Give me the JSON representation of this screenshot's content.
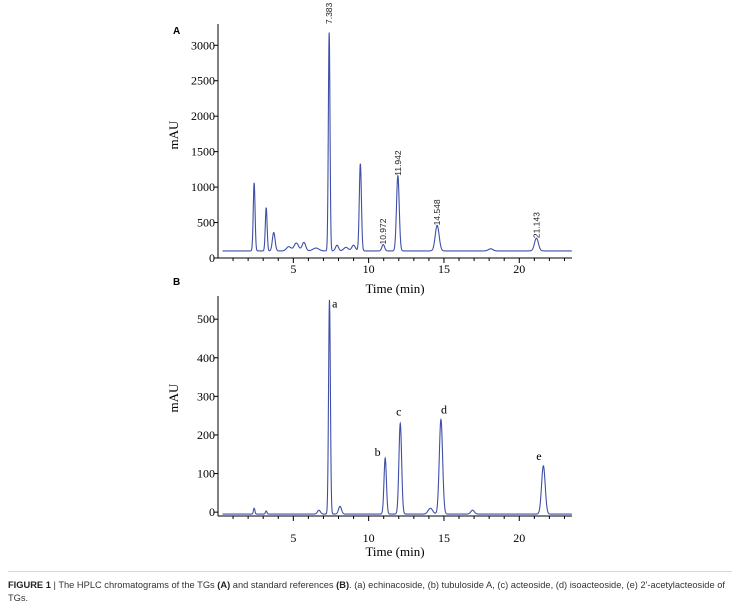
{
  "panels": [
    {
      "label": "A",
      "ylabel": "mAU",
      "xlabel": "Time (min)",
      "ylim": [
        0,
        3300
      ],
      "xlim": [
        0,
        23.5
      ],
      "yticks": [
        0,
        500,
        1000,
        1500,
        2000,
        2500,
        3000
      ],
      "xticks": [
        5,
        10,
        15,
        20
      ],
      "baseline": 100,
      "peaks": [
        {
          "t": 2.4,
          "h": 960,
          "w": 0.06
        },
        {
          "t": 3.2,
          "h": 610,
          "w": 0.06
        },
        {
          "t": 3.7,
          "h": 260,
          "w": 0.09
        },
        {
          "t": 4.7,
          "h": 60,
          "w": 0.15
        },
        {
          "t": 5.2,
          "h": 110,
          "w": 0.15
        },
        {
          "t": 5.7,
          "h": 120,
          "w": 0.12
        },
        {
          "t": 6.5,
          "h": 40,
          "w": 0.2
        },
        {
          "t": 7.38,
          "h": 3080,
          "w": 0.055
        },
        {
          "t": 7.9,
          "h": 80,
          "w": 0.1
        },
        {
          "t": 8.5,
          "h": 50,
          "w": 0.15
        },
        {
          "t": 9.0,
          "h": 80,
          "w": 0.12
        },
        {
          "t": 9.45,
          "h": 1230,
          "w": 0.07
        },
        {
          "t": 10.97,
          "h": 90,
          "w": 0.09
        },
        {
          "t": 11.94,
          "h": 1060,
          "w": 0.09
        },
        {
          "t": 14.55,
          "h": 360,
          "w": 0.13
        },
        {
          "t": 18.1,
          "h": 30,
          "w": 0.15
        },
        {
          "t": 21.14,
          "h": 180,
          "w": 0.13
        }
      ],
      "peak_labels": [
        {
          "text": "7.383",
          "t": 7.38,
          "y": 3300
        },
        {
          "text": "10.972",
          "t": 10.97,
          "y": 190
        },
        {
          "text": "11.942",
          "t": 11.94,
          "y": 1160
        },
        {
          "text": "14.548",
          "t": 14.55,
          "y": 460
        },
        {
          "text": "21.143",
          "t": 21.14,
          "y": 280
        }
      ]
    },
    {
      "label": "B",
      "ylabel": "mAU",
      "xlabel": "Time (min)",
      "ylim": [
        -10,
        560
      ],
      "xlim": [
        0,
        23.5
      ],
      "yticks": [
        0,
        100,
        200,
        300,
        400,
        500
      ],
      "xticks": [
        5,
        10,
        15,
        20
      ],
      "baseline": -5,
      "peaks": [
        {
          "t": 2.4,
          "h": 15,
          "w": 0.05
        },
        {
          "t": 3.2,
          "h": 8,
          "w": 0.05
        },
        {
          "t": 6.7,
          "h": 10,
          "w": 0.1
        },
        {
          "t": 7.4,
          "h": 555,
          "w": 0.06
        },
        {
          "t": 8.1,
          "h": 20,
          "w": 0.1
        },
        {
          "t": 11.1,
          "h": 145,
          "w": 0.08
        },
        {
          "t": 12.1,
          "h": 235,
          "w": 0.09
        },
        {
          "t": 14.1,
          "h": 15,
          "w": 0.15
        },
        {
          "t": 14.8,
          "h": 245,
          "w": 0.11
        },
        {
          "t": 16.9,
          "h": 10,
          "w": 0.12
        },
        {
          "t": 21.6,
          "h": 125,
          "w": 0.12
        }
      ],
      "peak_labels": [
        {
          "text": "a",
          "t": 7.75,
          "y": 530
        },
        {
          "text": "b",
          "t": 10.6,
          "y": 145
        },
        {
          "text": "c",
          "t": 12.0,
          "y": 250
        },
        {
          "text": "d",
          "t": 15.0,
          "y": 255
        },
        {
          "text": "e",
          "t": 21.3,
          "y": 135
        }
      ]
    }
  ],
  "chart_data": [
    {
      "type": "line",
      "title": "A",
      "xlabel": "Time (min)",
      "ylabel": "mAU",
      "xlim": [
        0,
        23.5
      ],
      "ylim": [
        0,
        3300
      ],
      "peaks_retention_time_min": [
        7.383,
        10.972,
        11.942,
        14.548,
        21.143
      ],
      "peaks_height_mAU": [
        3180,
        190,
        1160,
        460,
        280
      ]
    },
    {
      "type": "line",
      "title": "B",
      "xlabel": "Time (min)",
      "ylabel": "mAU",
      "xlim": [
        0,
        23.5
      ],
      "ylim": [
        -10,
        560
      ],
      "peak_labels": [
        "a",
        "b",
        "c",
        "d",
        "e"
      ],
      "peaks_retention_time_min": [
        7.4,
        11.1,
        12.1,
        14.8,
        21.6
      ],
      "peaks_height_mAU": [
        550,
        140,
        230,
        240,
        120
      ]
    }
  ],
  "colors": {
    "trace": "#3f4fa8",
    "axis": "#000000"
  },
  "caption": {
    "label": "FIGURE 1",
    "sep": " | ",
    "text1": "The HPLC chromatograms of the TGs ",
    "refA": "(A)",
    "text2": " and standard references ",
    "refB": "(B)",
    "text3": ". (a) echinacoside, (b) tubuloside A, (c) acteoside, (d) isoacteoside, (e) 2'-acetylacteoside of TGs."
  }
}
